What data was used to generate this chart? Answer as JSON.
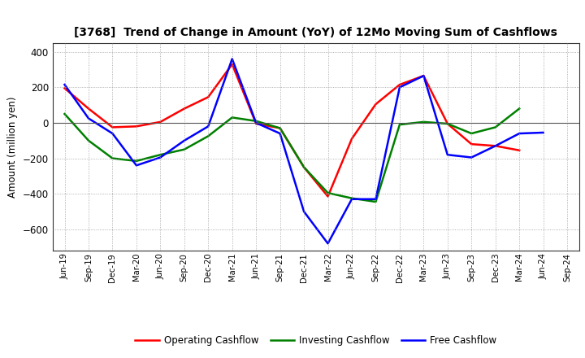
{
  "title": "[3768]  Trend of Change in Amount (YoY) of 12Mo Moving Sum of Cashflows",
  "ylabel": "Amount (million yen)",
  "x_labels": [
    "Jun-19",
    "Sep-19",
    "Dec-19",
    "Mar-20",
    "Jun-20",
    "Sep-20",
    "Dec-20",
    "Mar-21",
    "Jun-21",
    "Sep-21",
    "Dec-21",
    "Mar-22",
    "Jun-22",
    "Sep-22",
    "Dec-22",
    "Mar-23",
    "Jun-23",
    "Sep-23",
    "Dec-23",
    "Mar-24",
    "Jun-24",
    "Sep-24"
  ],
  "operating": [
    195,
    80,
    -25,
    -20,
    5,
    80,
    145,
    330,
    -5,
    -30,
    -250,
    -415,
    -90,
    105,
    215,
    265,
    -5,
    -120,
    -130,
    -155,
    null,
    null
  ],
  "investing": [
    50,
    -100,
    -200,
    -215,
    -180,
    -150,
    -75,
    30,
    10,
    -30,
    -250,
    -395,
    -425,
    -445,
    -10,
    5,
    -5,
    -60,
    -25,
    80,
    null,
    null
  ],
  "free": [
    215,
    25,
    -60,
    -240,
    -195,
    -100,
    -20,
    360,
    0,
    -60,
    -500,
    -680,
    -430,
    -430,
    200,
    265,
    -180,
    -195,
    -130,
    -60,
    -55,
    null
  ],
  "ylim": [
    -720,
    450
  ],
  "yticks": [
    -600,
    -400,
    -200,
    0,
    200,
    400
  ],
  "operating_color": "#ff0000",
  "investing_color": "#008000",
  "free_color": "#0000ff",
  "bg_color": "#ffffff",
  "grid_color": "#999999",
  "legend_labels": [
    "Operating Cashflow",
    "Investing Cashflow",
    "Free Cashflow"
  ]
}
